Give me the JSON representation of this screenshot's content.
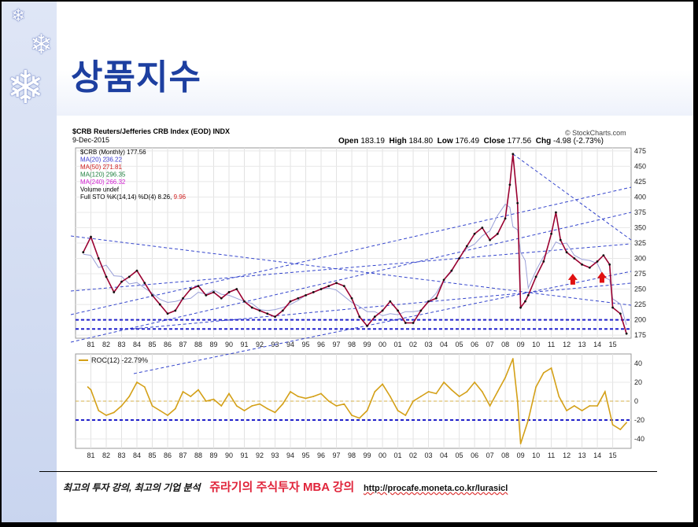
{
  "slide_title": "상품지수",
  "chart_header": {
    "symbol_line": "$CRB Reuters/Jefferies CRB Index (EOD) INDX",
    "date": "9-Dec-2015",
    "source": "© StockCharts.com",
    "open_label": "Open",
    "open": "183.19",
    "high_label": "High",
    "high": "184.80",
    "low_label": "Low",
    "low": "176.49",
    "close_label": "Close",
    "close": "177.56",
    "chg_label": "Chg",
    "chg": "-4.98 (-2.73%)"
  },
  "legend": [
    {
      "text": "$CRB (Monthly) 177.56",
      "color": "#000000"
    },
    {
      "text": "MA(20) 236.22",
      "color": "#3a3ad0"
    },
    {
      "text": "MA(50) 271.81",
      "color": "#d02020"
    },
    {
      "text": "MA(120) 296.35",
      "color": "#208040"
    },
    {
      "text": "MA(240) 266.32",
      "color": "#d020d0"
    },
    {
      "text": "Volume undef",
      "color": "#000000"
    },
    {
      "text": "Full STO %K(14,14) %D(4) 8.26, ",
      "extra": "9.96",
      "color": "#000000",
      "extra_color": "#d02020"
    }
  ],
  "roc_label": "ROC(12) -22.79%",
  "footer": {
    "left": "최고의 투자 강의, 최고의 기업 분석",
    "middle": "쥬라기의 주식투자 MBA 강의",
    "url": "http://procafe.moneta.co.kr/lurasicl"
  },
  "colors": {
    "title": "#1d3fa0",
    "price": "#9a0030",
    "roc": "#d4a017",
    "dashed": "#2222cc"
  },
  "chart_data": [
    {
      "type": "line",
      "name": "$CRB (Monthly)",
      "x": [
        1980.5,
        1981.0,
        1981.5,
        1982.0,
        1982.5,
        1983.0,
        1983.5,
        1984.0,
        1984.5,
        1985.0,
        1985.5,
        1986.0,
        1986.5,
        1987.0,
        1987.5,
        1988.0,
        1988.5,
        1989.0,
        1989.5,
        1990.0,
        1990.5,
        1991.0,
        1991.5,
        1992.0,
        1992.5,
        1993.0,
        1993.5,
        1994.0,
        1994.5,
        1995.0,
        1995.5,
        1996.0,
        1996.5,
        1997.0,
        1997.5,
        1998.0,
        1998.5,
        1999.0,
        1999.5,
        2000.0,
        2000.5,
        2001.0,
        2001.5,
        2002.0,
        2002.5,
        2003.0,
        2003.5,
        2004.0,
        2004.5,
        2005.0,
        2005.5,
        2006.0,
        2006.5,
        2007.0,
        2007.5,
        2008.0,
        2008.3,
        2008.5,
        2008.8,
        2009.0,
        2009.3,
        2009.5,
        2010.0,
        2010.5,
        2011.0,
        2011.3,
        2011.6,
        2012.0,
        2012.5,
        2013.0,
        2013.5,
        2014.0,
        2014.4,
        2014.8,
        2015.0,
        2015.5,
        2015.9
      ],
      "y": [
        310,
        335,
        300,
        270,
        245,
        262,
        270,
        280,
        260,
        240,
        225,
        210,
        215,
        235,
        250,
        255,
        240,
        245,
        235,
        245,
        250,
        230,
        220,
        215,
        210,
        205,
        215,
        230,
        235,
        240,
        245,
        250,
        255,
        260,
        255,
        235,
        205,
        190,
        205,
        215,
        230,
        215,
        195,
        195,
        215,
        230,
        235,
        265,
        280,
        300,
        320,
        340,
        350,
        330,
        340,
        365,
        420,
        470,
        390,
        220,
        230,
        240,
        270,
        295,
        340,
        375,
        330,
        310,
        300,
        290,
        285,
        295,
        305,
        290,
        220,
        210,
        177.56
      ],
      "ylim": [
        170,
        480
      ],
      "yticks": [
        175,
        200,
        225,
        250,
        275,
        300,
        325,
        350,
        375,
        400,
        425,
        450,
        475
      ],
      "xticks": [
        "81",
        "82",
        "83",
        "84",
        "85",
        "86",
        "87",
        "88",
        "89",
        "90",
        "91",
        "92",
        "93",
        "94",
        "95",
        "96",
        "97",
        "98",
        "99",
        "00",
        "01",
        "02",
        "03",
        "04",
        "05",
        "06",
        "07",
        "08",
        "09",
        "10",
        "11",
        "12",
        "13",
        "14",
        "15"
      ],
      "support_lines": [
        200,
        185
      ]
    },
    {
      "type": "line",
      "name": "ROC(12)",
      "x": [
        1980.8,
        1981.0,
        1981.5,
        1982.0,
        1982.5,
        1983.0,
        1983.5,
        1984.0,
        1984.5,
        1985.0,
        1985.5,
        1986.0,
        1986.5,
        1987.0,
        1987.5,
        1988.0,
        1988.5,
        1989.0,
        1989.5,
        1990.0,
        1990.5,
        1991.0,
        1991.5,
        1992.0,
        1992.5,
        1993.0,
        1993.5,
        1994.0,
        1994.5,
        1995.0,
        1995.5,
        1996.0,
        1996.5,
        1997.0,
        1997.5,
        1998.0,
        1998.5,
        1999.0,
        1999.5,
        2000.0,
        2000.5,
        2001.0,
        2001.5,
        2002.0,
        2002.5,
        2003.0,
        2003.5,
        2004.0,
        2004.5,
        2005.0,
        2005.5,
        2006.0,
        2006.5,
        2007.0,
        2007.5,
        2008.0,
        2008.5,
        2008.8,
        2009.0,
        2009.5,
        2010.0,
        2010.5,
        2011.0,
        2011.5,
        2012.0,
        2012.5,
        2013.0,
        2013.5,
        2014.0,
        2014.5,
        2015.0,
        2015.5,
        2015.9
      ],
      "y": [
        15,
        12,
        -10,
        -15,
        -12,
        -5,
        5,
        20,
        15,
        -5,
        -10,
        -15,
        -8,
        10,
        5,
        12,
        0,
        2,
        -5,
        8,
        -5,
        -10,
        -5,
        -3,
        -8,
        -12,
        -3,
        10,
        5,
        3,
        5,
        8,
        0,
        -5,
        -3,
        -15,
        -18,
        -10,
        10,
        18,
        5,
        -10,
        -15,
        0,
        5,
        10,
        8,
        20,
        12,
        5,
        10,
        20,
        10,
        -5,
        10,
        25,
        45,
        0,
        -45,
        -20,
        15,
        30,
        35,
        5,
        -10,
        -5,
        -10,
        -5,
        -5,
        10,
        -25,
        -30,
        -22.79
      ],
      "ylim": [
        -50,
        50
      ],
      "yticks": [
        -40,
        -20,
        0,
        20,
        40
      ],
      "reference_line": -20
    }
  ]
}
